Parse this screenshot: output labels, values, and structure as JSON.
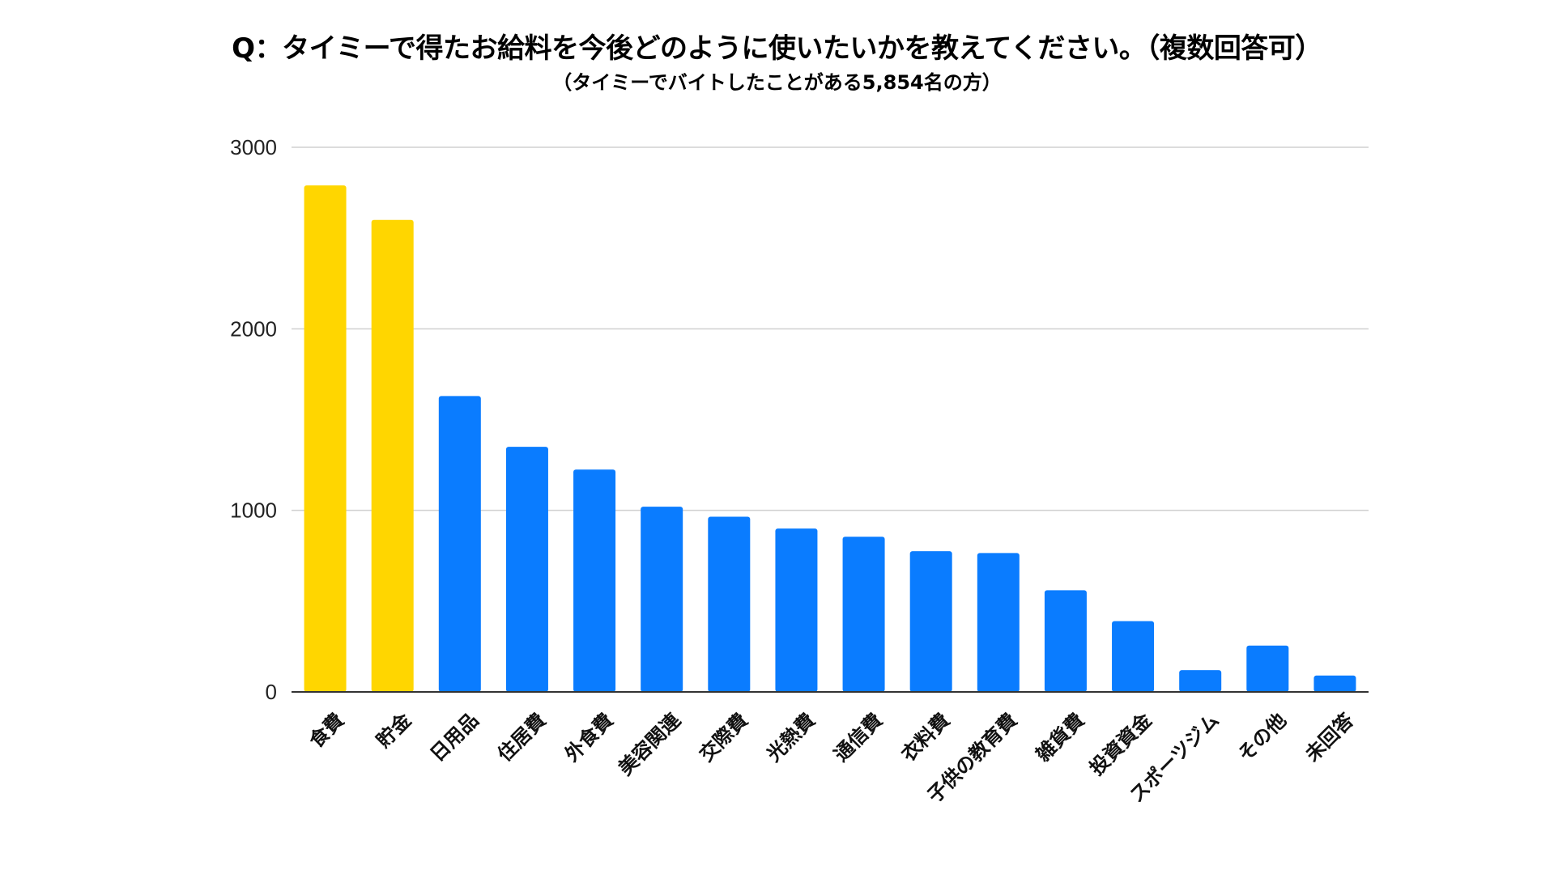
{
  "chart_data": {
    "type": "bar",
    "title": "Q：タイミーで得たお給料を今後どのように使いたいかを教えてください。（複数回答可）",
    "subtitle": "（タイミーでバイトしたことがある5,854名の方）",
    "xlabel": "",
    "ylabel": "",
    "ylim": [
      0,
      3000
    ],
    "yticks": [
      0,
      1000,
      2000,
      3000
    ],
    "grid": true,
    "legend": "none",
    "categories": [
      "食費",
      "貯金",
      "日用品",
      "住居費",
      "外食費",
      "美容関連",
      "交際費",
      "光熱費",
      "通信費",
      "衣料費",
      "子供の教育費",
      "雑貨費",
      "投資資金",
      "スポーツジム",
      "その他",
      "未回答"
    ],
    "values": [
      2790,
      2600,
      1630,
      1350,
      1225,
      1020,
      965,
      900,
      855,
      775,
      765,
      560,
      390,
      120,
      255,
      90
    ],
    "colors": {
      "highlight": "#FFD600",
      "default": "#0A7CFF",
      "grid": "#D0D0D0",
      "axis": "#333333"
    },
    "highlight_categories": [
      "食費",
      "貯金"
    ]
  }
}
